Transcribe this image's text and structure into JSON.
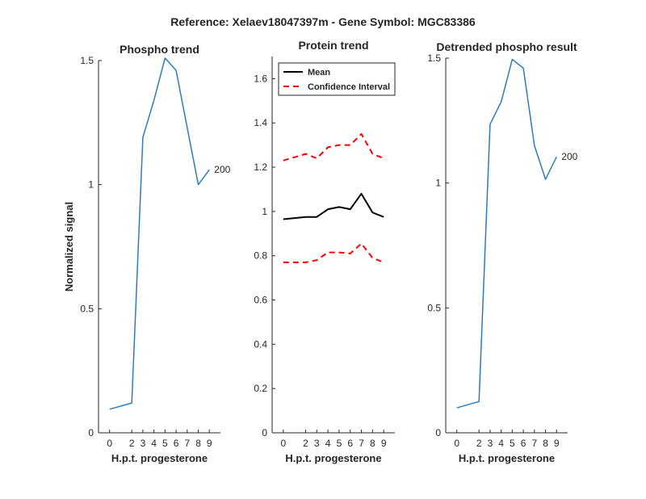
{
  "figure_title": "Reference:  Xelaev18047397m - Gene Symbol:  MGC83386",
  "colors": {
    "blue": "#2e7cbd",
    "black": "#000000",
    "red": "#ff0000",
    "axis": "#262626"
  },
  "chart_data": [
    {
      "type": "line",
      "title": "Phospho trend",
      "xlabel": "H.p.t. progesterone",
      "ylabel": "Normalized signal",
      "x": [
        0,
        2,
        3,
        4,
        5,
        6,
        7,
        8,
        9
      ],
      "xticks": [
        "0",
        "2",
        "3",
        "4",
        "5",
        "6",
        "7",
        "8",
        "9"
      ],
      "ylim": [
        0,
        1.5
      ],
      "yticks": [
        "0",
        "0.5",
        "1",
        "1.5"
      ],
      "series": [
        {
          "color": "#2e7cbd",
          "style": "solid",
          "values": [
            0.095,
            0.12,
            1.19,
            1.34,
            1.51,
            1.46,
            1.23,
            1.0,
            1.06
          ]
        }
      ],
      "annotation": {
        "text": "200",
        "x": 9,
        "y": 1.06
      },
      "grid": false
    },
    {
      "type": "line",
      "title": "Protein trend",
      "xlabel": "H.p.t. progesterone",
      "ylabel": "",
      "x": [
        0,
        2,
        3,
        4,
        5,
        6,
        7,
        8,
        9
      ],
      "xticks": [
        "0",
        "2",
        "3",
        "4",
        "5",
        "6",
        "7",
        "8",
        "9"
      ],
      "ylim": [
        0,
        1.7
      ],
      "yticks": [
        "0",
        "0.2",
        "0.4",
        "0.6",
        "0.8",
        "1",
        "1.2",
        "1.4",
        "1.6"
      ],
      "series": [
        {
          "name": "Mean",
          "color": "#000000",
          "style": "solid",
          "values": [
            0.965,
            0.975,
            0.975,
            1.01,
            1.02,
            1.01,
            1.08,
            0.995,
            0.975
          ]
        },
        {
          "name": "Confidence Interval",
          "color": "#ff0000",
          "style": "dashed",
          "values": [
            1.23,
            1.26,
            1.24,
            1.29,
            1.3,
            1.3,
            1.35,
            1.26,
            1.24
          ]
        },
        {
          "color": "#ff0000",
          "style": "dashed",
          "values": [
            0.77,
            0.77,
            0.78,
            0.815,
            0.815,
            0.81,
            0.855,
            0.79,
            0.77
          ]
        }
      ],
      "legend": {
        "position": "top-left",
        "entries": [
          "Mean",
          "Confidence Interval"
        ]
      },
      "grid": false
    },
    {
      "type": "line",
      "title": "Detrended phospho result",
      "xlabel": "H.p.t. progesterone",
      "ylabel": "",
      "x": [
        0,
        2,
        3,
        4,
        5,
        6,
        7,
        8,
        9
      ],
      "xticks": [
        "0",
        "2",
        "3",
        "4",
        "5",
        "6",
        "7",
        "8",
        "9"
      ],
      "ylim": [
        0,
        1.5
      ],
      "yticks": [
        "0",
        "0.5",
        "1",
        "1.5"
      ],
      "series": [
        {
          "color": "#2e7cbd",
          "style": "solid",
          "values": [
            0.1,
            0.125,
            1.235,
            1.325,
            1.495,
            1.46,
            1.15,
            1.015,
            1.105
          ]
        }
      ],
      "annotation": {
        "text": "200",
        "x": 9,
        "y": 1.105
      },
      "grid": false
    }
  ]
}
